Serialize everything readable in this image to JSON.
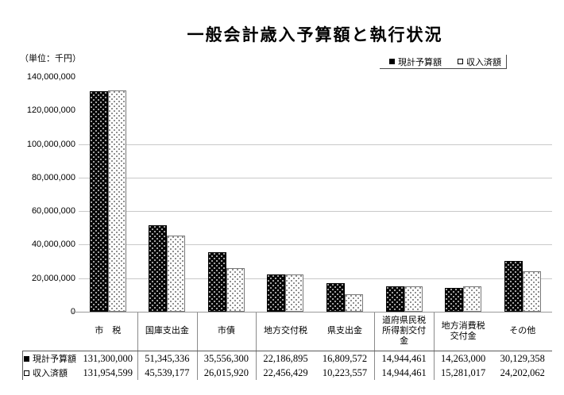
{
  "title": "一般会計歳入予算額と執行状況",
  "unit_label": "（単位：千円）",
  "legend": {
    "items": [
      {
        "label": "現計予算額",
        "marker": "filled-square"
      },
      {
        "label": "収入済額",
        "marker": "open-square"
      }
    ]
  },
  "chart_data": {
    "type": "bar",
    "title": "一般会計歳入予算額と執行状況",
    "unit": "千円",
    "categories": [
      "市　税",
      "国庫支出金",
      "市債",
      "地方交付税",
      "県支出金",
      "道府県民税\n所得割交付\n金",
      "地方消費税\n交付金",
      "その他"
    ],
    "series": [
      {
        "name": "現計予算額",
        "marker": "filled-square",
        "values": [
          131300000,
          51345336,
          35556300,
          22186895,
          16809572,
          14944461,
          14263000,
          30129358
        ]
      },
      {
        "name": "収入済額",
        "marker": "open-square",
        "values": [
          131954599,
          45539177,
          26015920,
          22456429,
          10223557,
          14944461,
          15281017,
          24202062
        ]
      }
    ],
    "ylim": [
      0,
      140000000
    ],
    "ytick_step": 20000000,
    "ytick_labels": [
      "0",
      "20,000,000",
      "40,000,000",
      "60,000,000",
      "80,000,000",
      "100,000,000",
      "120,000,000",
      "140,000,000"
    ],
    "gridline_values": [
      20000000,
      40000000,
      60000000,
      80000000,
      100000000
    ],
    "grid": true,
    "legend_position": "top-right",
    "table_rows": [
      {
        "label": "現計予算額",
        "marker": "filled-square",
        "values": [
          "131,300,000",
          "51,345,336",
          "35,556,300",
          "22,186,895",
          "16,809,572",
          "14,944,461",
          "14,263,000",
          "30,129,358"
        ]
      },
      {
        "label": "収入済額",
        "marker": "open-square",
        "values": [
          "131,954,599",
          "45,539,177",
          "26,015,920",
          "22,456,429",
          "10,223,557",
          "14,944,461",
          "15,281,017",
          "24,202,062"
        ]
      }
    ]
  },
  "colors": {
    "series1_fill": "#000000",
    "series2_fill": "#ffffff",
    "gridline": "#c9c9c9",
    "axis": "#9a9a9a",
    "table_line": "#8a8a8a",
    "text": "#000000"
  }
}
